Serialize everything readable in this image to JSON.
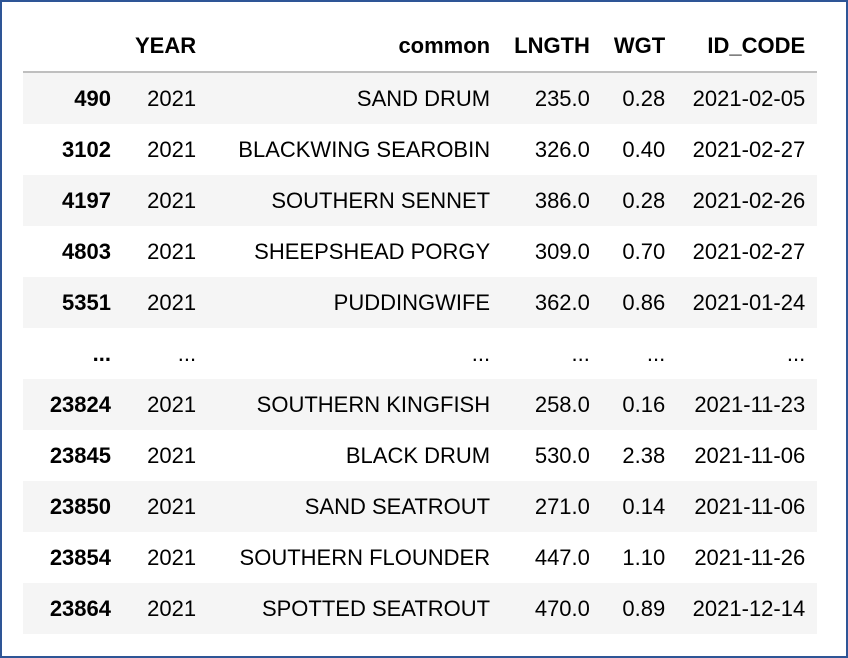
{
  "table": {
    "columns": [
      "",
      "YEAR",
      "common",
      "LNGTH",
      "WGT",
      "ID_CODE"
    ],
    "rows": [
      {
        "index": "490",
        "year": "2021",
        "common": "SAND DRUM",
        "lngth": "235.0",
        "wgt": "0.28",
        "id_code": "2021-02-05"
      },
      {
        "index": "3102",
        "year": "2021",
        "common": "BLACKWING SEAROBIN",
        "lngth": "326.0",
        "wgt": "0.40",
        "id_code": "2021-02-27"
      },
      {
        "index": "4197",
        "year": "2021",
        "common": "SOUTHERN SENNET",
        "lngth": "386.0",
        "wgt": "0.28",
        "id_code": "2021-02-26"
      },
      {
        "index": "4803",
        "year": "2021",
        "common": "SHEEPSHEAD PORGY",
        "lngth": "309.0",
        "wgt": "0.70",
        "id_code": "2021-02-27"
      },
      {
        "index": "5351",
        "year": "2021",
        "common": "PUDDINGWIFE",
        "lngth": "362.0",
        "wgt": "0.86",
        "id_code": "2021-01-24"
      },
      {
        "index": "...",
        "year": "...",
        "common": "...",
        "lngth": "...",
        "wgt": "...",
        "id_code": "..."
      },
      {
        "index": "23824",
        "year": "2021",
        "common": "SOUTHERN KINGFISH",
        "lngth": "258.0",
        "wgt": "0.16",
        "id_code": "2021-11-23"
      },
      {
        "index": "23845",
        "year": "2021",
        "common": "BLACK DRUM",
        "lngth": "530.0",
        "wgt": "2.38",
        "id_code": "2021-11-06"
      },
      {
        "index": "23850",
        "year": "2021",
        "common": "SAND SEATROUT",
        "lngth": "271.0",
        "wgt": "0.14",
        "id_code": "2021-11-06"
      },
      {
        "index": "23854",
        "year": "2021",
        "common": "SOUTHERN FLOUNDER",
        "lngth": "447.0",
        "wgt": "1.10",
        "id_code": "2021-11-26"
      },
      {
        "index": "23864",
        "year": "2021",
        "common": "SPOTTED SEATROUT",
        "lngth": "470.0",
        "wgt": "0.89",
        "id_code": "2021-12-14"
      }
    ]
  },
  "colors": {
    "frame_border": "#2e5596",
    "stripe": "#f5f5f5",
    "header_rule": "#bfbfbf"
  }
}
